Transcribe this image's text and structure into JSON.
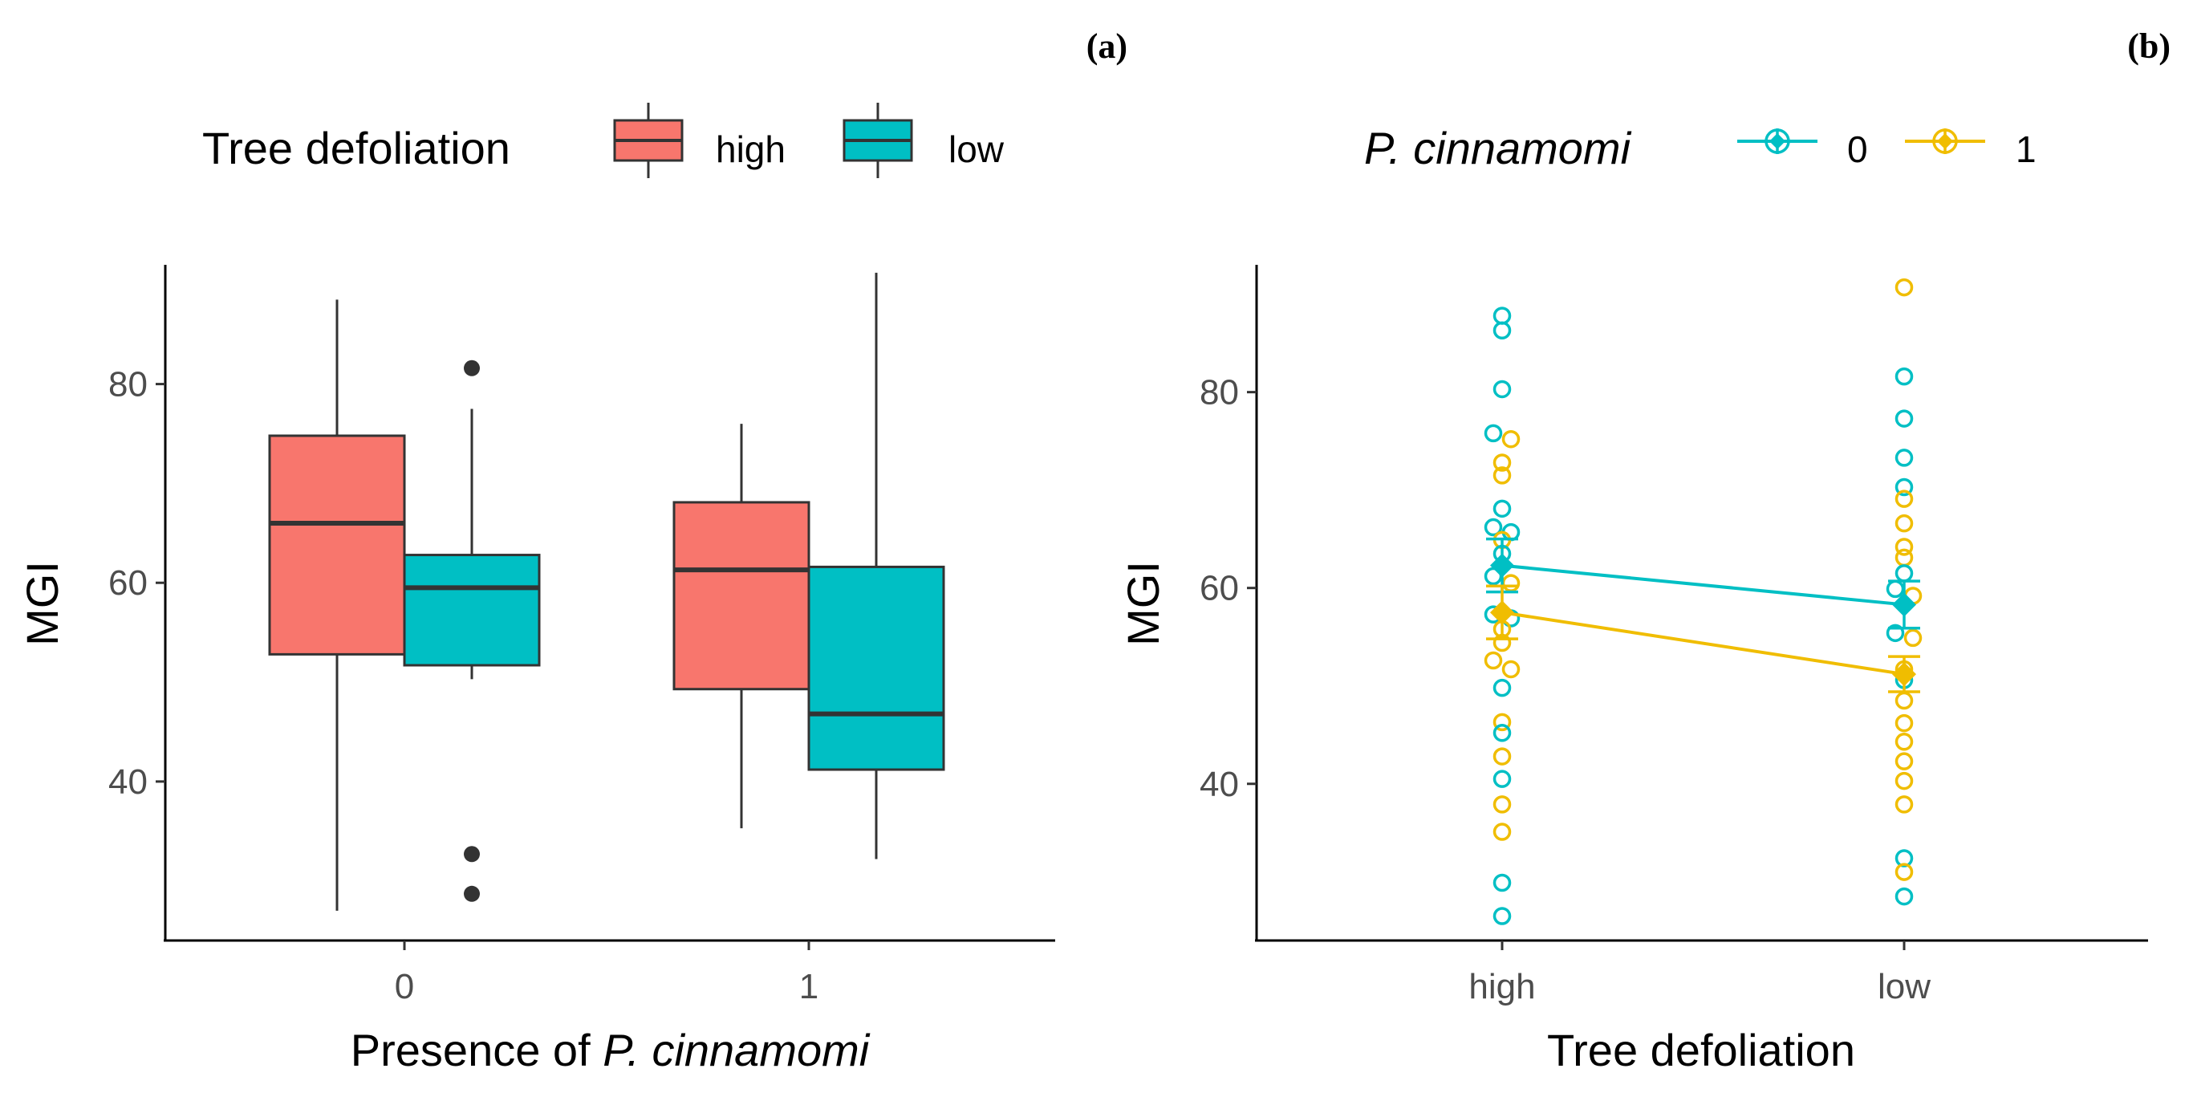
{
  "colors": {
    "high": "#F8766D",
    "low": "#00BFC4",
    "pc0": "#00BFC4",
    "pc1": "#F0BD00",
    "outline": "#333333",
    "axis": "#000000"
  },
  "chart_data": [
    {
      "type": "box",
      "panel_label": "(a)",
      "legend": {
        "title": "Tree defoliation",
        "position": "top",
        "entries": [
          {
            "label": "high",
            "color_key": "high"
          },
          {
            "label": "low",
            "color_key": "low"
          }
        ]
      },
      "xlabel_prefix": "Presence of ",
      "xlabel_italic": "P. cinnamomi",
      "ylabel": "MGI",
      "ylim": [
        24,
        92
      ],
      "yticks": [
        40,
        60,
        80
      ],
      "categories": [
        "0",
        "1"
      ],
      "boxes": [
        {
          "category": "0",
          "group": "high",
          "whisker_low": 27,
          "q1": 52.8,
          "median": 66,
          "q3": 74.8,
          "whisker_high": 88.5,
          "outliers": []
        },
        {
          "category": "0",
          "group": "low",
          "whisker_low": 50.3,
          "q1": 51.7,
          "median": 59.5,
          "q3": 62.8,
          "whisker_high": 77.5,
          "outliers": [
            81.6,
            32.7,
            28.7
          ]
        },
        {
          "category": "1",
          "group": "high",
          "whisker_low": 35.3,
          "q1": 49.3,
          "median": 61.3,
          "q3": 68.1,
          "whisker_high": 76,
          "outliers": []
        },
        {
          "category": "1",
          "group": "low",
          "whisker_low": 32.2,
          "q1": 41.2,
          "median": 46.8,
          "q3": 61.6,
          "whisker_high": 91.2,
          "outliers": []
        }
      ]
    },
    {
      "type": "scatter",
      "panel_label": "(b)",
      "legend": {
        "title": "P. cinnamomi",
        "position": "top",
        "entries": [
          {
            "label": "0",
            "color_key": "pc0"
          },
          {
            "label": "1",
            "color_key": "pc1"
          }
        ]
      },
      "xlabel": "Tree defoliation",
      "ylabel": "MGI",
      "ylim": [
        24,
        93
      ],
      "yticks": [
        40,
        60,
        80
      ],
      "categories": [
        "high",
        "low"
      ],
      "points": {
        "high": [
          {
            "y": 87.8,
            "s": "0"
          },
          {
            "y": 86.3,
            "s": "0"
          },
          {
            "y": 80.3,
            "s": "0"
          },
          {
            "y": 75.8,
            "s": "0"
          },
          {
            "y": 75.2,
            "s": "1"
          },
          {
            "y": 72.8,
            "s": "1"
          },
          {
            "y": 71.5,
            "s": "1"
          },
          {
            "y": 68.1,
            "s": "0"
          },
          {
            "y": 66.2,
            "s": "0"
          },
          {
            "y": 65.7,
            "s": "0"
          },
          {
            "y": 64.9,
            "s": "1"
          },
          {
            "y": 63.5,
            "s": "0"
          },
          {
            "y": 61.2,
            "s": "0"
          },
          {
            "y": 60.5,
            "s": "1"
          },
          {
            "y": 57.3,
            "s": "0"
          },
          {
            "y": 56.9,
            "s": "0"
          },
          {
            "y": 55.8,
            "s": "1"
          },
          {
            "y": 54.4,
            "s": "1"
          },
          {
            "y": 52.6,
            "s": "1"
          },
          {
            "y": 51.7,
            "s": "1"
          },
          {
            "y": 49.8,
            "s": "0"
          },
          {
            "y": 46.3,
            "s": "1"
          },
          {
            "y": 45.2,
            "s": "0"
          },
          {
            "y": 42.8,
            "s": "1"
          },
          {
            "y": 40.5,
            "s": "0"
          },
          {
            "y": 37.9,
            "s": "1"
          },
          {
            "y": 35.1,
            "s": "1"
          },
          {
            "y": 29.9,
            "s": "0"
          },
          {
            "y": 26.5,
            "s": "0"
          }
        ],
        "low": [
          {
            "y": 90.7,
            "s": "1"
          },
          {
            "y": 81.6,
            "s": "0"
          },
          {
            "y": 77.3,
            "s": "0"
          },
          {
            "y": 73.3,
            "s": "0"
          },
          {
            "y": 70.3,
            "s": "0"
          },
          {
            "y": 69.1,
            "s": "1"
          },
          {
            "y": 66.6,
            "s": "1"
          },
          {
            "y": 64.2,
            "s": "1"
          },
          {
            "y": 63.1,
            "s": "1"
          },
          {
            "y": 61.5,
            "s": "0"
          },
          {
            "y": 59.9,
            "s": "0"
          },
          {
            "y": 59.2,
            "s": "1"
          },
          {
            "y": 55.4,
            "s": "0"
          },
          {
            "y": 54.9,
            "s": "1"
          },
          {
            "y": 51.7,
            "s": "1"
          },
          {
            "y": 50.6,
            "s": "0"
          },
          {
            "y": 48.5,
            "s": "1"
          },
          {
            "y": 46.2,
            "s": "1"
          },
          {
            "y": 44.3,
            "s": "1"
          },
          {
            "y": 42.3,
            "s": "1"
          },
          {
            "y": 40.3,
            "s": "1"
          },
          {
            "y": 37.9,
            "s": "1"
          },
          {
            "y": 32.4,
            "s": "0"
          },
          {
            "y": 31.0,
            "s": "1"
          },
          {
            "y": 28.5,
            "s": "0"
          }
        ]
      },
      "series": [
        {
          "name": "0",
          "color_key": "pc0",
          "means": [
            62.3,
            58.3
          ],
          "se": [
            2.7,
            2.4
          ]
        },
        {
          "name": "1",
          "color_key": "pc1",
          "means": [
            57.5,
            51.2
          ],
          "se": [
            2.7,
            1.8
          ]
        }
      ]
    }
  ]
}
